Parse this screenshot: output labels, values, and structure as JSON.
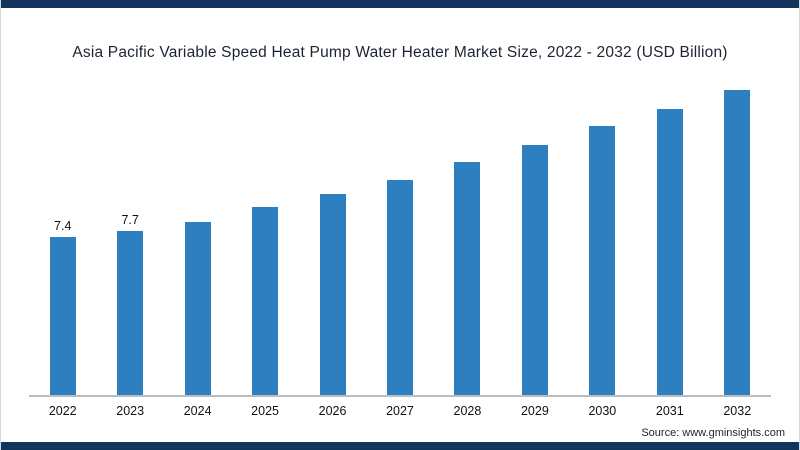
{
  "chart_data": {
    "type": "bar",
    "title": "Asia Pacific Variable Speed Heat Pump Water Heater Market Size, 2022 - 2032 (USD Billion)",
    "categories": [
      "2022",
      "2023",
      "2024",
      "2025",
      "2026",
      "2027",
      "2028",
      "2029",
      "2030",
      "2031",
      "2032"
    ],
    "values": [
      7.4,
      7.7,
      8.1,
      8.8,
      9.4,
      10.1,
      10.9,
      11.7,
      12.6,
      13.4,
      14.3
    ],
    "data_labels": [
      "7.4",
      "7.7",
      "",
      "",
      "",
      "",
      "",
      "",
      "",
      "",
      ""
    ],
    "xlabel": "",
    "ylabel": "",
    "ylim": [
      0,
      15
    ],
    "grid": false,
    "legend": false,
    "bar_color": "#2e7fc0"
  },
  "frame": {
    "accent_color": "#12355e"
  },
  "source": {
    "text": "Source: www.gminsights.com"
  }
}
